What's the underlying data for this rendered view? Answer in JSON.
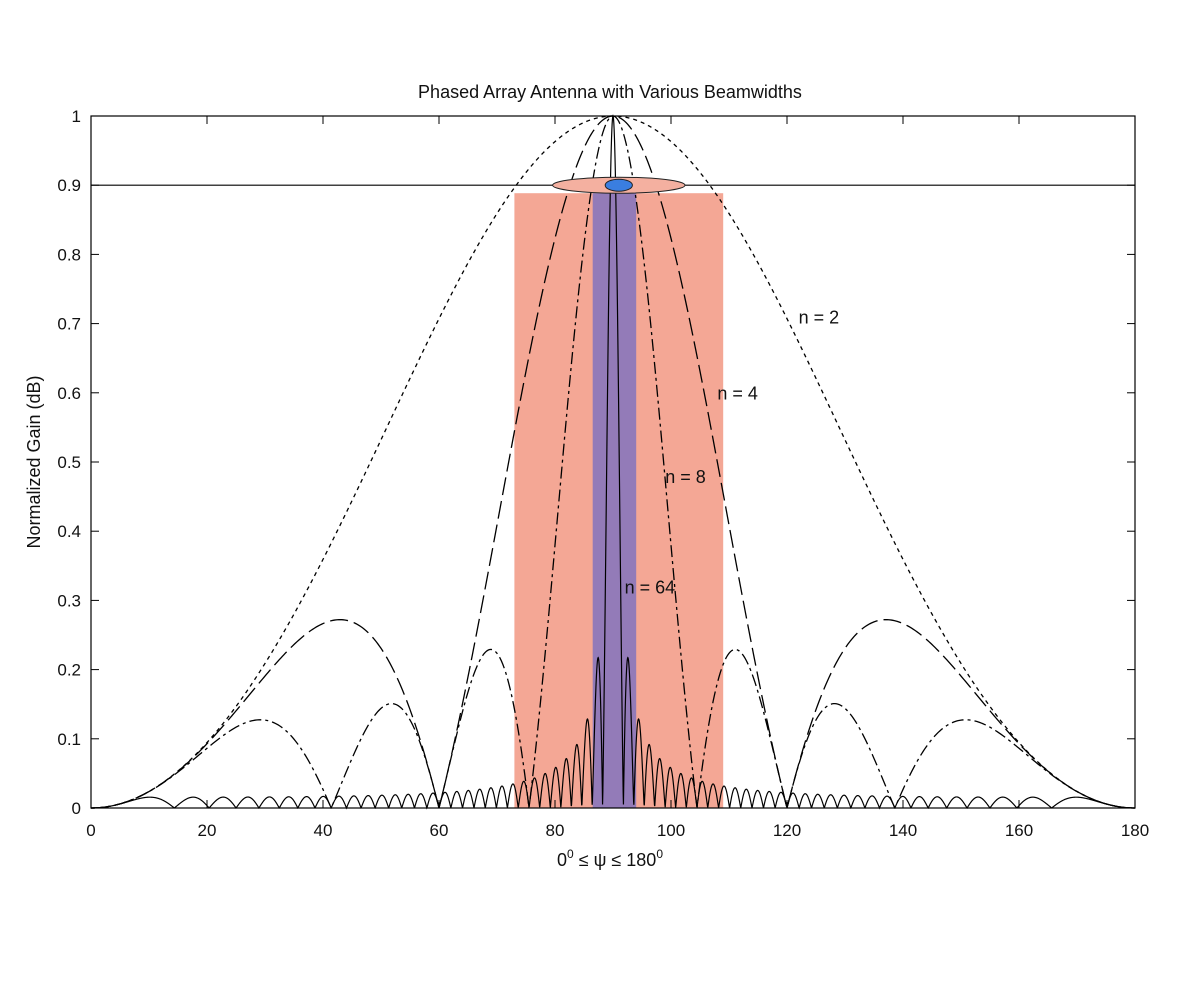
{
  "chart_data": {
    "type": "line",
    "title": "Phased Array Antenna with Various Beamwidths",
    "xlabel": {
      "base": "0",
      "sup1": "0",
      "mid": " ≤ ψ ≤ 180",
      "sup2": "0"
    },
    "ylabel": "Normalized Gain (dB)",
    "xlim": [
      0,
      180
    ],
    "ylim": [
      0,
      1
    ],
    "x_ticks": [
      0,
      20,
      40,
      60,
      80,
      100,
      120,
      140,
      160,
      180
    ],
    "y_ticks": [
      0,
      0.1,
      0.2,
      0.3,
      0.4,
      0.5,
      0.6,
      0.7,
      0.8,
      0.9,
      1
    ],
    "y_tick_labels": [
      "0",
      "0.1",
      "0.2",
      "0.3",
      "0.4",
      "0.5",
      "0.6",
      "0.7",
      "0.8",
      "0.9",
      "1"
    ],
    "grid": false,
    "series": [
      {
        "name": "n = 2",
        "n": 2,
        "dash": "4,4"
      },
      {
        "name": "n = 4",
        "n": 4,
        "dash": "18,6"
      },
      {
        "name": "n = 8",
        "n": 8,
        "dash": "12,4,3,4"
      },
      {
        "name": "n = 64",
        "n": 64,
        "dash": ""
      }
    ],
    "reference_line": {
      "y": 0.9
    },
    "shaded_bands": [
      {
        "x": [
          73,
          109
        ],
        "color": "#f08a72",
        "opacity": 0.75
      },
      {
        "x": [
          86.5,
          94
        ],
        "color": "#7a70c0",
        "opacity": 0.8
      }
    ],
    "ellipses": [
      {
        "cx": 91,
        "cy": 0.9,
        "rx_units": 18,
        "color": "#f4b0a0"
      },
      {
        "cx": 91,
        "cy": 0.9,
        "rx_units": 4,
        "color": "#3a7ee0"
      }
    ],
    "annotations": [
      {
        "text": "n = 2",
        "x": 122,
        "y": 0.7
      },
      {
        "text": "n = 4",
        "x": 108,
        "y": 0.59
      },
      {
        "text": "n = 8",
        "x": 99,
        "y": 0.47
      },
      {
        "text": "n = 64",
        "x": 92,
        "y": 0.31
      }
    ]
  }
}
